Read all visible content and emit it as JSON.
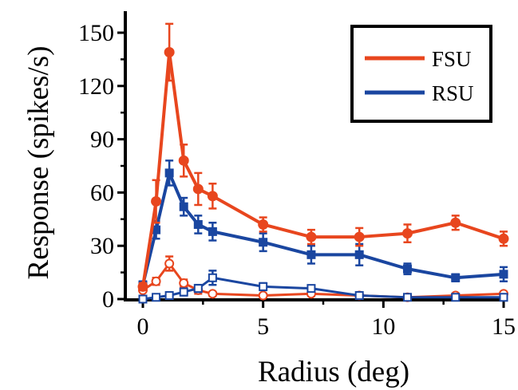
{
  "chart_data": {
    "type": "line",
    "xlabel": "Radius (deg)",
    "ylabel": "Response (spikes/s)",
    "xlim": [
      0,
      15
    ],
    "ylim": [
      0,
      160
    ],
    "xticks": [
      0,
      5,
      10,
      15
    ],
    "yticks": [
      0,
      30,
      60,
      90,
      120,
      150
    ],
    "grid": false,
    "legend_placement": "top-right",
    "legend_entries": [
      "FSU",
      "RSU"
    ],
    "series": [
      {
        "name": "FSU",
        "condition": "filled",
        "color": "#E8461E",
        "marker": "circle",
        "x": [
          0,
          0.55,
          1.1,
          1.7,
          2.3,
          2.9,
          5.0,
          7.0,
          9.0,
          11.0,
          13.0,
          15.0
        ],
        "y": [
          7,
          55,
          139,
          78,
          62,
          58,
          42,
          35,
          35,
          37,
          43,
          34
        ],
        "err": [
          2,
          12,
          16,
          9,
          9,
          7,
          4,
          4,
          5,
          5,
          4,
          4
        ]
      },
      {
        "name": "RSU",
        "condition": "filled",
        "color": "#1A46A0",
        "marker": "square",
        "x": [
          0,
          0.55,
          1.1,
          1.7,
          2.3,
          2.9,
          5.0,
          7.0,
          9.0,
          11.0,
          13.0,
          15.0
        ],
        "y": [
          8,
          39,
          71,
          52,
          42,
          38,
          32,
          25,
          25,
          17,
          12,
          14
        ],
        "err": [
          2,
          5,
          7,
          5,
          5,
          5,
          5,
          5,
          6,
          3,
          2,
          4
        ]
      },
      {
        "name": "FSU",
        "condition": "open",
        "color": "#E8461E",
        "marker": "open-circle",
        "x": [
          0,
          0.55,
          1.1,
          1.7,
          2.3,
          2.9,
          5.0,
          7.0,
          9.0,
          11.0,
          13.0,
          15.0
        ],
        "y": [
          5,
          10,
          20,
          9,
          5,
          3,
          2,
          3,
          2,
          1,
          2,
          3
        ],
        "err": [
          1,
          2,
          4,
          2,
          2,
          1,
          1,
          1,
          1,
          1,
          1,
          1
        ]
      },
      {
        "name": "RSU",
        "condition": "open",
        "color": "#1A46A0",
        "marker": "open-square",
        "x": [
          0,
          0.55,
          1.1,
          1.7,
          2.3,
          2.9,
          5.0,
          7.0,
          9.0,
          11.0,
          13.0,
          15.0
        ],
        "y": [
          0,
          1,
          2,
          4,
          6,
          12,
          7,
          6,
          2,
          1,
          1,
          1
        ],
        "err": [
          0,
          1,
          1,
          2,
          2,
          4,
          2,
          1,
          1,
          1,
          1,
          1
        ]
      }
    ]
  }
}
